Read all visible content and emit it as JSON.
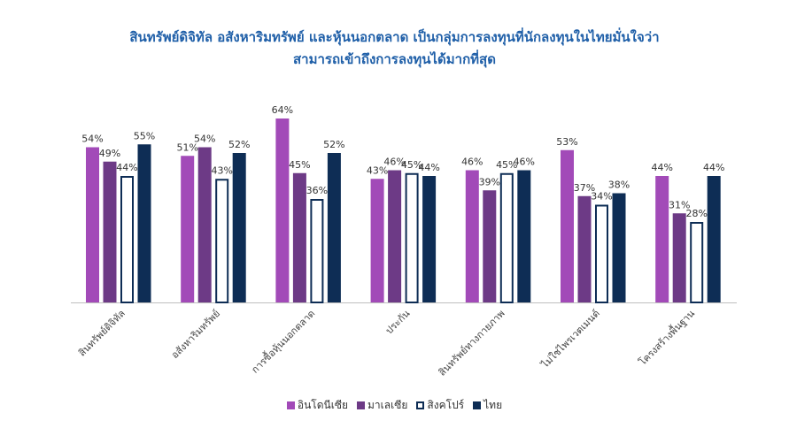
{
  "chart_data": {
    "type": "bar",
    "title_lines": [
      "สินทรัพย์ดิจิทัล อสังหาริมทรัพย์ และหุ้นนอกตลาด เป็นกลุ่มการลงทุนที่นักลงทุนในไทยมั่นใจว่า",
      "สามารถเข้าถึงการลงทุนได้มากที่สุด"
    ],
    "categories": [
      "สินทรัพย์ดิจิทัล",
      "อสังหาริมทรัพย์",
      "การซื้อหุ้นนอกตลาด",
      "ประกัน",
      "สินทรัพย์ทางกายภาพ",
      "ไม่ใช่ไพรเวตเมนต์",
      "โครงสร้างพื้นฐาน"
    ],
    "series": [
      {
        "name": "อินโดนีเซีย",
        "color": "#a24ab8",
        "outline": false,
        "values": [
          54,
          51,
          64,
          43,
          46,
          53,
          44
        ]
      },
      {
        "name": "มาเลเซีย",
        "color": "#6d3a86",
        "outline": false,
        "values": [
          49,
          54,
          45,
          46,
          39,
          37,
          31
        ]
      },
      {
        "name": "สิงคโปร์",
        "color": "#ffffff",
        "stroke": "#0e2d55",
        "outline": true,
        "values": [
          44,
          43,
          36,
          45,
          45,
          34,
          28
        ]
      },
      {
        "name": "ไทย",
        "color": "#0e2d55",
        "outline": false,
        "values": [
          55,
          52,
          52,
          44,
          46,
          38,
          44
        ]
      }
    ],
    "value_suffix": "%",
    "ylim": [
      0,
      64
    ],
    "grid": false,
    "legend_position": "bottom"
  }
}
